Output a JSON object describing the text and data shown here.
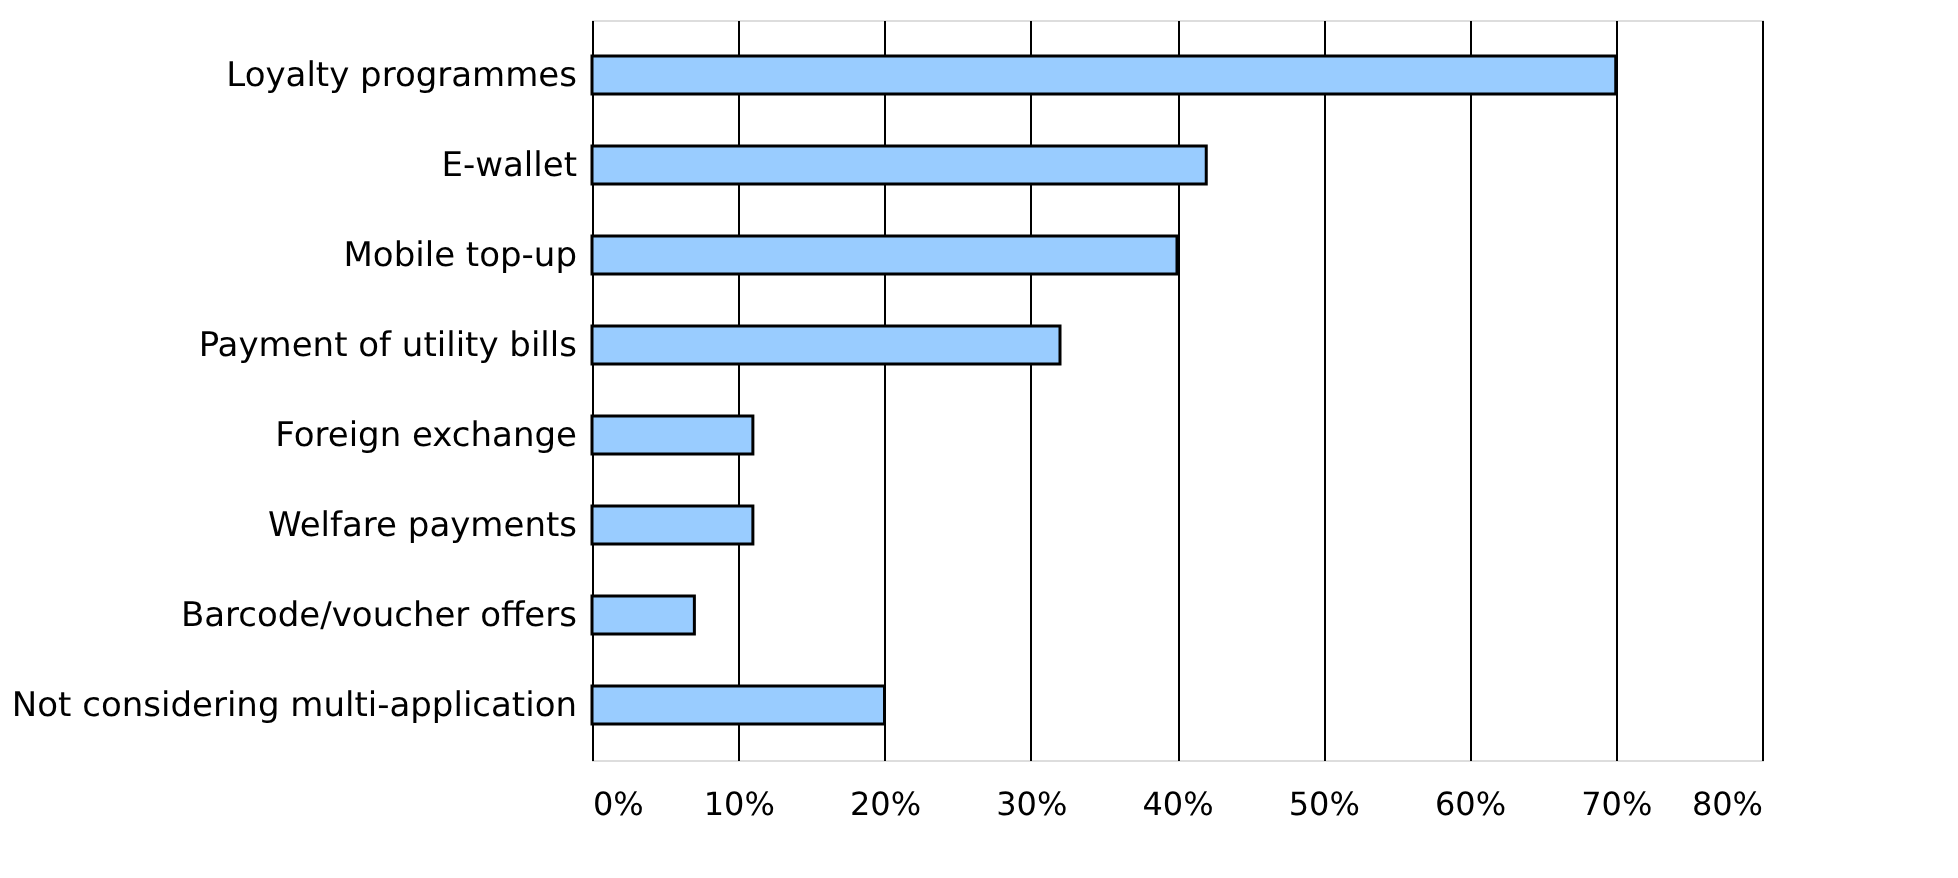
{
  "chart_data": {
    "type": "bar",
    "orientation": "horizontal",
    "categories": [
      "Loyalty programmes",
      "E-wallet",
      "Mobile top-up",
      "Payment of utility bills",
      "Foreign exchange",
      "Welfare payments",
      "Barcode/voucher offers",
      "Not considering multi-application"
    ],
    "values": [
      70,
      42,
      40,
      32,
      11,
      11,
      7,
      20
    ],
    "color": "#99ccff",
    "xlim": [
      0,
      80
    ],
    "xticks": [
      {
        "value": 0,
        "label": "0%"
      },
      {
        "value": 10,
        "label": "10%"
      },
      {
        "value": 20,
        "label": "20%"
      },
      {
        "value": 30,
        "label": "30%"
      },
      {
        "value": 40,
        "label": "40%"
      },
      {
        "value": 50,
        "label": "50%"
      },
      {
        "value": 60,
        "label": "60%"
      },
      {
        "value": 70,
        "label": "70%"
      },
      {
        "value": 80,
        "label": "80%"
      }
    ],
    "grid": "x"
  }
}
